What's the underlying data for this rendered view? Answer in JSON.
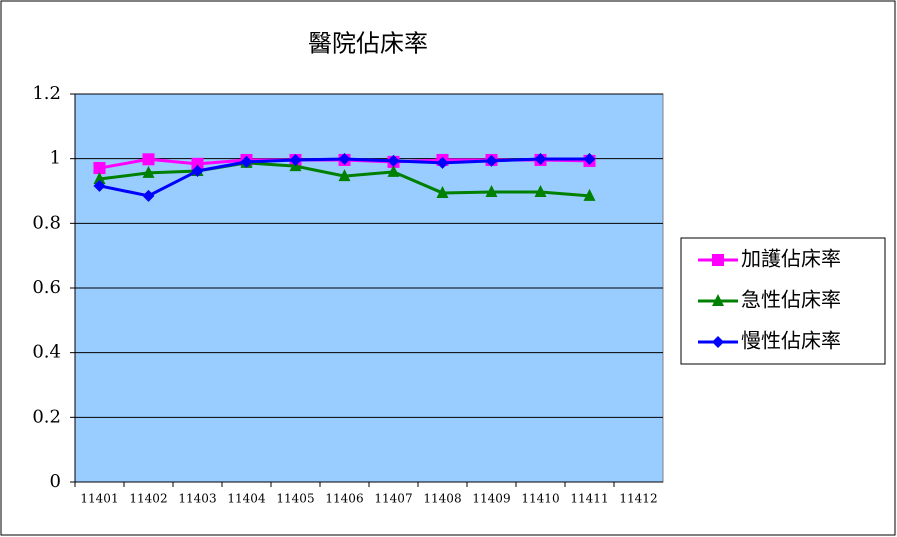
{
  "chart_data": {
    "type": "line",
    "title": "醫院佔床率",
    "categories": [
      "11401",
      "11402",
      "11403",
      "11404",
      "11405",
      "11406",
      "11407",
      "11408",
      "11409",
      "11410",
      "11411",
      "11412"
    ],
    "series": [
      {
        "name": "加護佔床率",
        "color": "#ff00ff",
        "marker": "square",
        "values": [
          0.971,
          0.998,
          0.984,
          0.996,
          0.996,
          0.996,
          0.99,
          0.996,
          0.996,
          0.996,
          0.993,
          null
        ]
      },
      {
        "name": "急性佔床率",
        "color": "#008000",
        "marker": "triangle",
        "values": [
          0.937,
          0.956,
          0.962,
          0.987,
          0.977,
          0.946,
          0.959,
          0.894,
          0.897,
          0.897,
          0.885,
          null
        ]
      },
      {
        "name": "慢性佔床率",
        "color": "#0000ff",
        "marker": "diamond",
        "values": [
          0.916,
          0.885,
          0.962,
          0.99,
          0.996,
          0.999,
          0.993,
          0.987,
          0.993,
          0.999,
          0.999,
          null
        ]
      }
    ],
    "ylim": [
      0,
      1.2
    ],
    "yticks": [
      0,
      0.2,
      0.4,
      0.6,
      0.8,
      1,
      1.2
    ],
    "grid": true,
    "plot_background": "#99ccff",
    "legend": "right"
  }
}
